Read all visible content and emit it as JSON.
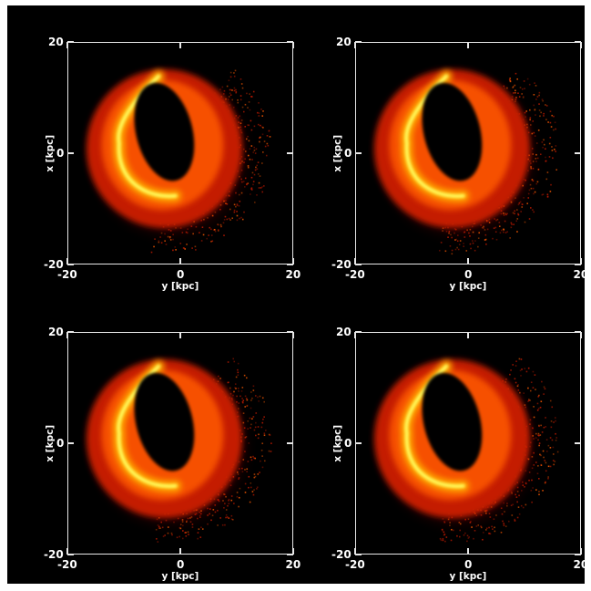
{
  "chart_data": [
    {
      "type": "heatmap",
      "panel": "top-left",
      "xlabel": "y [kpc]",
      "ylabel": "x [kpc]",
      "xlim": [
        -20,
        20
      ],
      "ylim": [
        -20,
        20
      ],
      "xticks": [
        -20,
        0,
        20
      ],
      "yticks": [
        -20,
        0,
        20
      ],
      "xtick_labels": [
        "-20",
        "0",
        "20"
      ],
      "ytick_labels": [
        "-20",
        "0",
        "20"
      ],
      "colormap": [
        "#000000",
        "#5a0000",
        "#c41a00",
        "#ff5a00",
        "#ffb000",
        "#ffff60"
      ],
      "ring": {
        "center": [
          -3,
          1
        ],
        "outer_radius": 15,
        "hole_center": [
          -3,
          4
        ],
        "hole_radius_x": 5,
        "hole_radius_y": 9,
        "bright_arc_y": -11
      },
      "grid": false
    },
    {
      "type": "heatmap",
      "panel": "top-right",
      "xlabel": "y [kpc]",
      "ylabel": "x [kpc]",
      "xlim": [
        -20,
        20
      ],
      "ylim": [
        -20,
        20
      ],
      "xticks": [
        -20,
        0,
        20
      ],
      "yticks": [
        -20,
        0,
        20
      ],
      "xtick_labels": [
        "-20",
        "0",
        "20"
      ],
      "ytick_labels": [
        "-20",
        "0",
        "20"
      ],
      "colormap": [
        "#000000",
        "#5a0000",
        "#c41a00",
        "#ff5a00",
        "#ffb000",
        "#ffff60"
      ],
      "ring": {
        "center": [
          -3,
          1
        ],
        "outer_radius": 15,
        "hole_center": [
          -3,
          4
        ],
        "hole_radius_x": 5,
        "hole_radius_y": 9,
        "bright_arc_y": -11
      },
      "grid": false
    },
    {
      "type": "heatmap",
      "panel": "bottom-left",
      "xlabel": "y [kpc]",
      "ylabel": "x [kpc]",
      "xlim": [
        -20,
        20
      ],
      "ylim": [
        -20,
        20
      ],
      "xticks": [
        -20,
        0,
        20
      ],
      "yticks": [
        -20,
        0,
        20
      ],
      "xtick_labels": [
        "-20",
        "0",
        "20"
      ],
      "ytick_labels": [
        "-20",
        "0",
        "20"
      ],
      "colormap": [
        "#000000",
        "#5a0000",
        "#c41a00",
        "#ff5a00",
        "#ffb000",
        "#ffff60"
      ],
      "ring": {
        "center": [
          -3,
          1
        ],
        "outer_radius": 15,
        "hole_center": [
          -3,
          4
        ],
        "hole_radius_x": 5,
        "hole_radius_y": 9,
        "bright_arc_y": -11
      },
      "grid": false
    },
    {
      "type": "heatmap",
      "panel": "bottom-right",
      "xlabel": "y [kpc]",
      "ylabel": "x [kpc]",
      "xlim": [
        -20,
        20
      ],
      "ylim": [
        -20,
        20
      ],
      "xticks": [
        -20,
        0,
        20
      ],
      "yticks": [
        -20,
        0,
        20
      ],
      "xtick_labels": [
        "-20",
        "0",
        "20"
      ],
      "ytick_labels": [
        "-20",
        "0",
        "20"
      ],
      "colormap": [
        "#000000",
        "#5a0000",
        "#c41a00",
        "#ff5a00",
        "#ffb000",
        "#ffff60"
      ],
      "ring": {
        "center": [
          -3,
          1
        ],
        "outer_radius": 15,
        "hole_center": [
          -3,
          4
        ],
        "hole_radius_x": 5,
        "hole_radius_y": 9,
        "bright_arc_y": -11
      },
      "grid": false
    }
  ]
}
